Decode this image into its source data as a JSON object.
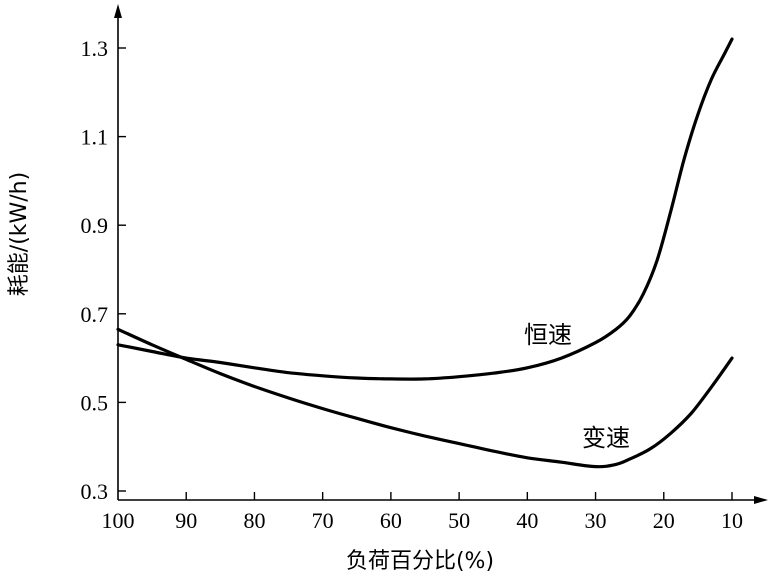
{
  "chart_data": {
    "type": "line",
    "title": "",
    "xlabel": "负荷百分比(%)",
    "ylabel": "耗能/(kW/h)",
    "x_ticks": [
      100,
      90,
      80,
      70,
      60,
      50,
      40,
      30,
      20,
      10
    ],
    "y_ticks": [
      "0.3",
      "0.5",
      "0.7",
      "0.9",
      "1.1",
      "1.3"
    ],
    "xlim": [
      100,
      10
    ],
    "ylim": [
      0.3,
      1.3
    ],
    "x_reversed": true,
    "grid": false,
    "series": [
      {
        "name": "恒速",
        "x": [
          100,
          95,
          90,
          85,
          80,
          75,
          70,
          65,
          60,
          55,
          50,
          45,
          40,
          35,
          30,
          27,
          25,
          23,
          21,
          19,
          17,
          15,
          13,
          11,
          10
        ],
        "y": [
          0.63,
          0.615,
          0.6,
          0.59,
          0.578,
          0.567,
          0.56,
          0.555,
          0.553,
          0.553,
          0.558,
          0.566,
          0.578,
          0.6,
          0.635,
          0.665,
          0.695,
          0.745,
          0.82,
          0.93,
          1.05,
          1.15,
          1.23,
          1.29,
          1.32
        ]
      },
      {
        "name": "变速",
        "x": [
          100,
          95,
          90,
          85,
          80,
          75,
          70,
          65,
          60,
          55,
          50,
          45,
          40,
          35,
          30,
          27,
          25,
          22,
          19,
          16,
          13,
          10
        ],
        "y": [
          0.665,
          0.63,
          0.597,
          0.565,
          0.536,
          0.51,
          0.486,
          0.464,
          0.443,
          0.424,
          0.407,
          0.39,
          0.375,
          0.365,
          0.355,
          0.36,
          0.372,
          0.395,
          0.43,
          0.475,
          0.535,
          0.6
        ]
      }
    ]
  }
}
